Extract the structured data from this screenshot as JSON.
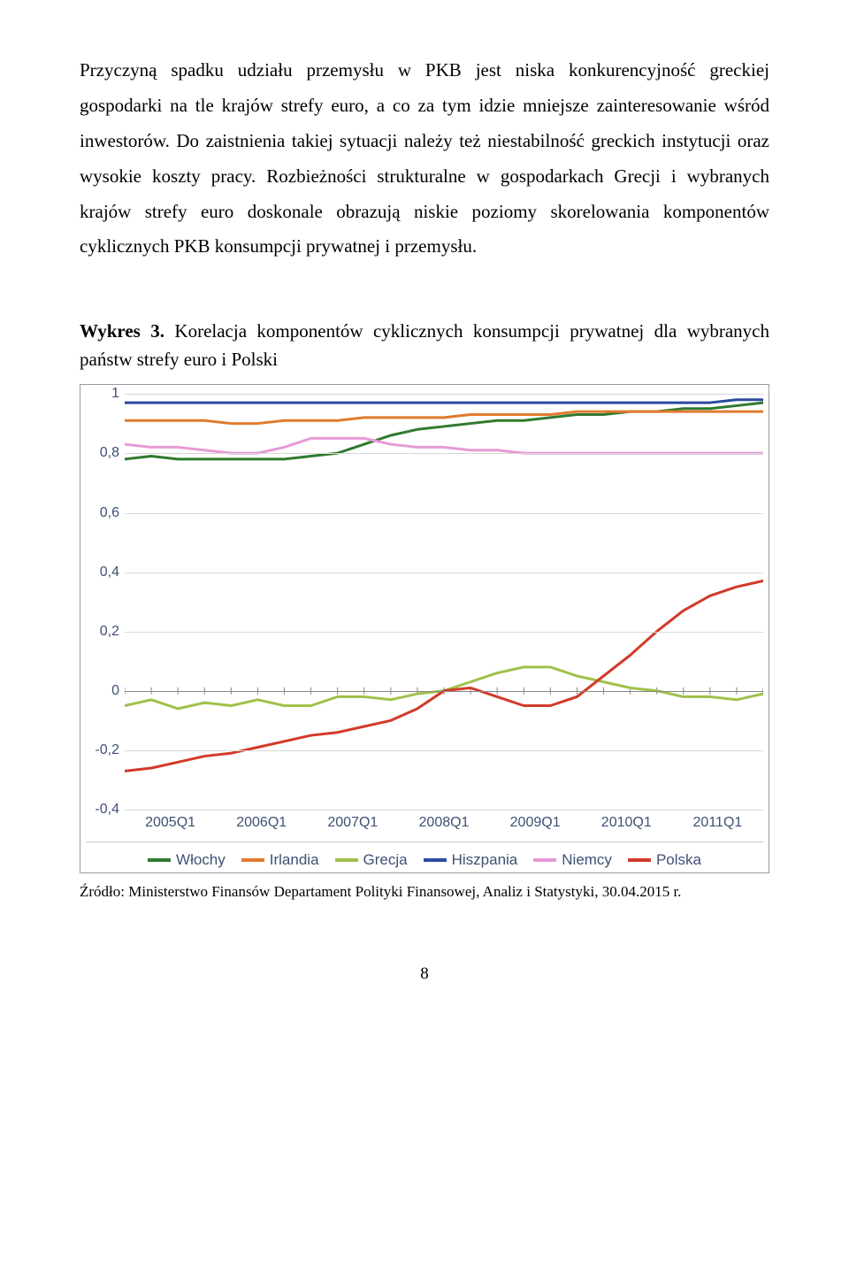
{
  "paragraph": "Przyczyną spadku udziału przemysłu w PKB jest niska konkurencyjność greckiej gospodarki na tle krajów strefy euro, a co za tym idzie mniejsze zainteresowanie wśród inwestorów. Do zaistnienia takiej sytuacji należy też niestabilność greckich instytucji oraz wysokie koszty pracy. Rozbieżności strukturalne w gospodarkach Grecji i wybranych krajów strefy euro doskonale obrazują niskie poziomy skorelowania komponentów cyklicznych PKB konsumpcji prywatnej i przemysłu.",
  "caption_label": "Wykres 3.",
  "caption_text": " Korelacja komponentów cyklicznych konsumpcji prywatnej dla wybranych państw strefy euro i Polski",
  "chart": {
    "type": "line",
    "background_color": "#ffffff",
    "grid_color": "#d8d8d8",
    "axis_text_color": "#3f5075",
    "axis_fontsize": 16,
    "line_width": 3,
    "ylim": [
      -0.4,
      1.0
    ],
    "yticks": [
      1,
      0.8,
      0.6,
      0.4,
      0.2,
      0,
      -0.2,
      -0.4
    ],
    "ytick_labels": [
      "1",
      "0,8",
      "0,6",
      "0,4",
      "0,2",
      "0",
      "-0,2",
      "-0,4"
    ],
    "x_labels": [
      "2005Q1",
      "2006Q1",
      "2007Q1",
      "2008Q1",
      "2009Q1",
      "2010Q1",
      "2011Q1"
    ],
    "series": [
      {
        "name": "Włochy",
        "color": "#2f7a2f",
        "values": [
          0.78,
          0.79,
          0.78,
          0.78,
          0.78,
          0.78,
          0.78,
          0.79,
          0.8,
          0.83,
          0.86,
          0.88,
          0.89,
          0.9,
          0.91,
          0.91,
          0.92,
          0.93,
          0.93,
          0.94,
          0.94,
          0.95,
          0.95,
          0.96,
          0.97
        ]
      },
      {
        "name": "Irlandia",
        "color": "#e07b2e",
        "values": [
          0.91,
          0.91,
          0.91,
          0.91,
          0.9,
          0.9,
          0.91,
          0.91,
          0.91,
          0.92,
          0.92,
          0.92,
          0.92,
          0.93,
          0.93,
          0.93,
          0.93,
          0.94,
          0.94,
          0.94,
          0.94,
          0.94,
          0.94,
          0.94,
          0.94
        ]
      },
      {
        "name": "Grecja",
        "color": "#a0c14a",
        "values": [
          -0.05,
          -0.03,
          -0.06,
          -0.04,
          -0.05,
          -0.03,
          -0.05,
          -0.05,
          -0.02,
          -0.02,
          -0.03,
          -0.01,
          0.0,
          0.03,
          0.06,
          0.08,
          0.08,
          0.05,
          0.03,
          0.01,
          0.0,
          -0.02,
          -0.02,
          -0.03,
          -0.01
        ]
      },
      {
        "name": "Hiszpania",
        "color": "#2b4aa0",
        "values": [
          0.97,
          0.97,
          0.97,
          0.97,
          0.97,
          0.97,
          0.97,
          0.97,
          0.97,
          0.97,
          0.97,
          0.97,
          0.97,
          0.97,
          0.97,
          0.97,
          0.97,
          0.97,
          0.97,
          0.97,
          0.97,
          0.97,
          0.97,
          0.98,
          0.98
        ]
      },
      {
        "name": "Niemcy",
        "color": "#e69ad6",
        "values": [
          0.83,
          0.82,
          0.82,
          0.81,
          0.8,
          0.8,
          0.82,
          0.85,
          0.85,
          0.85,
          0.83,
          0.82,
          0.82,
          0.81,
          0.81,
          0.8,
          0.8,
          0.8,
          0.8,
          0.8,
          0.8,
          0.8,
          0.8,
          0.8,
          0.8
        ]
      },
      {
        "name": "Polska",
        "color": "#d23a2a",
        "values": [
          -0.27,
          -0.26,
          -0.24,
          -0.22,
          -0.21,
          -0.19,
          -0.17,
          -0.15,
          -0.14,
          -0.12,
          -0.1,
          -0.06,
          0.0,
          0.01,
          -0.02,
          -0.05,
          -0.05,
          -0.02,
          0.05,
          0.12,
          0.2,
          0.27,
          0.32,
          0.35,
          0.37
        ]
      }
    ],
    "legend_labels": [
      "Włochy",
      "Irlandia",
      "Grecja",
      "Hiszpania",
      "Niemcy",
      "Polska"
    ]
  },
  "source": "Źródło: Ministerstwo Finansów Departament Polityki Finansowej, Analiz i Statystyki, 30.04.2015 r.",
  "page_number": "8"
}
